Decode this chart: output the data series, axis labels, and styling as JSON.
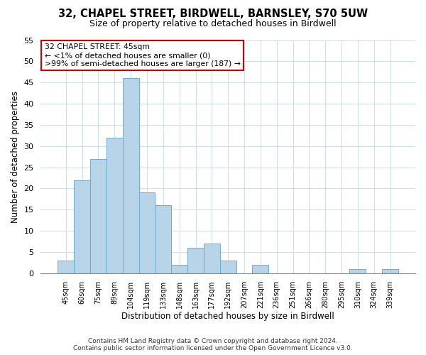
{
  "title": "32, CHAPEL STREET, BIRDWELL, BARNSLEY, S70 5UW",
  "subtitle": "Size of property relative to detached houses in Birdwell",
  "xlabel": "Distribution of detached houses by size in Birdwell",
  "ylabel": "Number of detached properties",
  "categories": [
    "45sqm",
    "60sqm",
    "75sqm",
    "89sqm",
    "104sqm",
    "119sqm",
    "133sqm",
    "148sqm",
    "163sqm",
    "177sqm",
    "192sqm",
    "207sqm",
    "221sqm",
    "236sqm",
    "251sqm",
    "266sqm",
    "280sqm",
    "295sqm",
    "310sqm",
    "324sqm",
    "339sqm"
  ],
  "values": [
    3,
    22,
    27,
    32,
    46,
    19,
    16,
    2,
    6,
    7,
    3,
    0,
    2,
    0,
    0,
    0,
    0,
    0,
    1,
    0,
    1
  ],
  "bar_color": "#b8d4e8",
  "bar_edge_color": "#6aadd5",
  "annotation_title": "32 CHAPEL STREET: 45sqm",
  "annotation_line1": "← <1% of detached houses are smaller (0)",
  "annotation_line2": ">99% of semi-detached houses are larger (187) →",
  "annotation_box_color": "#ffffff",
  "annotation_box_edge": "#cc0000",
  "ylim": [
    0,
    55
  ],
  "yticks": [
    0,
    5,
    10,
    15,
    20,
    25,
    30,
    35,
    40,
    45,
    50,
    55
  ],
  "footer_line1": "Contains HM Land Registry data © Crown copyright and database right 2024.",
  "footer_line2": "Contains public sector information licensed under the Open Government Licence v3.0.",
  "bg_color": "#ffffff",
  "grid_color": "#ccdff0"
}
